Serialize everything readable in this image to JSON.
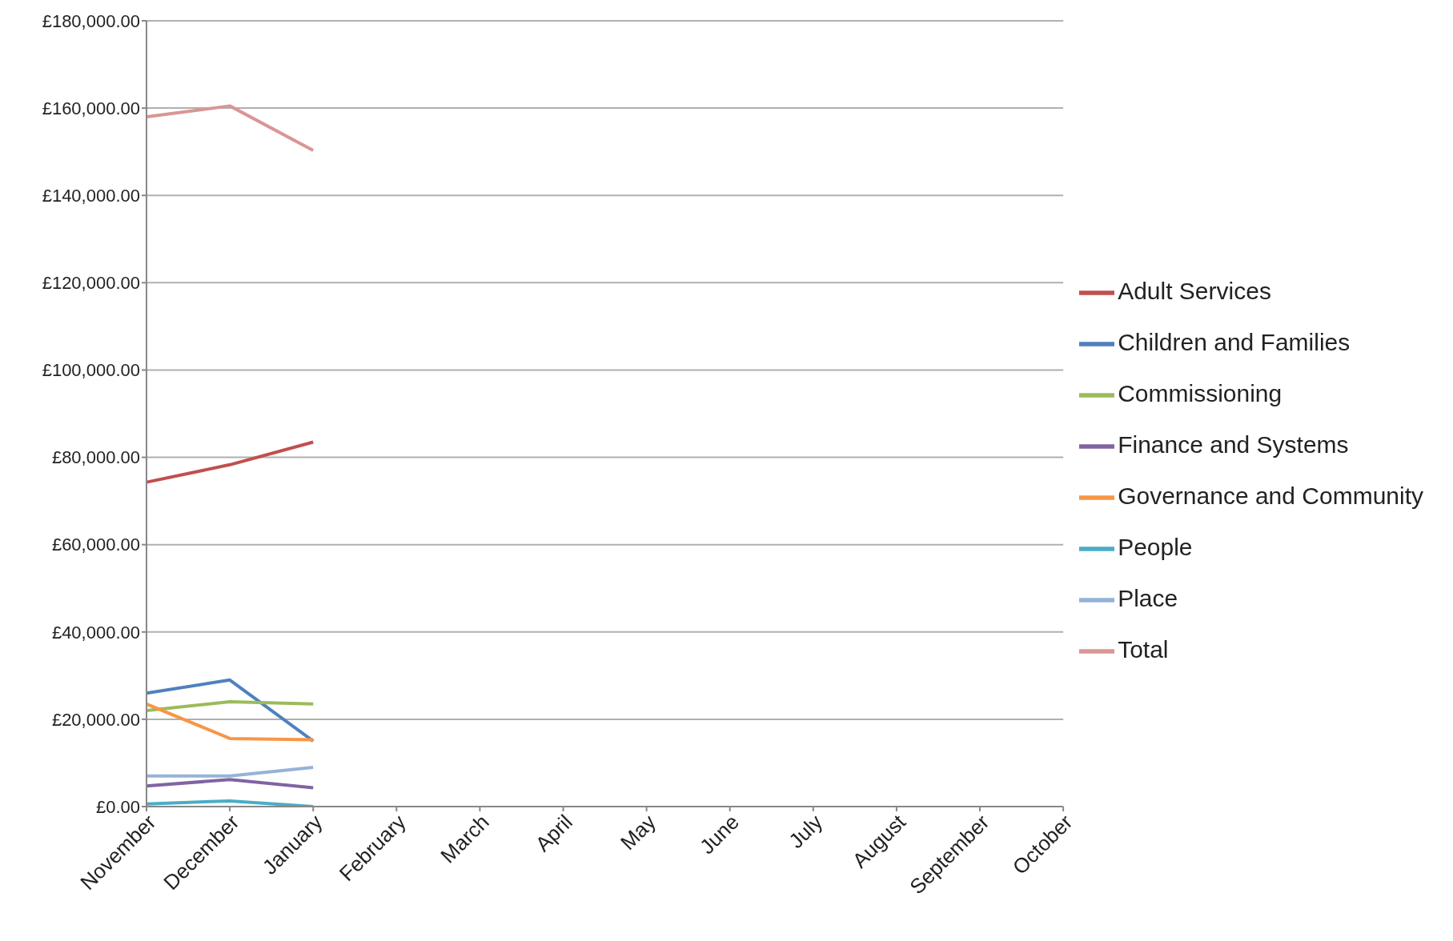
{
  "chart_data": {
    "type": "line",
    "categories": [
      "November",
      "December",
      "January",
      "February",
      "March",
      "April",
      "May",
      "June",
      "July",
      "August",
      "September",
      "October"
    ],
    "series": [
      {
        "name": "Children and Families",
        "color": "#4f81bd",
        "values": [
          26000,
          29000,
          15000,
          null,
          null,
          null,
          null,
          null,
          null,
          null,
          null,
          null
        ]
      },
      {
        "name": "Adult Services",
        "color": "#c0504d",
        "values": [
          74300,
          78300,
          83500,
          null,
          null,
          null,
          null,
          null,
          null,
          null,
          null,
          null
        ]
      },
      {
        "name": "Commissioning",
        "color": "#9bbb59",
        "values": [
          22000,
          24000,
          23500,
          null,
          null,
          null,
          null,
          null,
          null,
          null,
          null,
          null
        ]
      },
      {
        "name": "Finance and Systems",
        "color": "#8064a2",
        "values": [
          4700,
          6200,
          4300,
          null,
          null,
          null,
          null,
          null,
          null,
          null,
          null,
          null
        ]
      },
      {
        "name": "People",
        "color": "#4bacc6",
        "values": [
          600,
          1300,
          0,
          null,
          null,
          null,
          null,
          null,
          null,
          null,
          null,
          null
        ]
      },
      {
        "name": "Governance and Community",
        "color": "#f79646",
        "values": [
          23500,
          15600,
          15300,
          null,
          null,
          null,
          null,
          null,
          null,
          null,
          null,
          null
        ]
      },
      {
        "name": "Place",
        "color": "#95b3d7",
        "values": [
          7000,
          7000,
          9000,
          null,
          null,
          null,
          null,
          null,
          null,
          null,
          null,
          null
        ]
      },
      {
        "name": "Total",
        "color": "#d99694",
        "values": [
          158000,
          160500,
          150300,
          null,
          null,
          null,
          null,
          null,
          null,
          null,
          null,
          null
        ]
      }
    ],
    "ylim": [
      0,
      180000
    ],
    "yticks": [
      {
        "value": 0,
        "label": "£0.00"
      },
      {
        "value": 20000,
        "label": "£20,000.00"
      },
      {
        "value": 40000,
        "label": "£40,000.00"
      },
      {
        "value": 60000,
        "label": "£60,000.00"
      },
      {
        "value": 80000,
        "label": "£80,000.00"
      },
      {
        "value": 100000,
        "label": "£100,000.00"
      },
      {
        "value": 120000,
        "label": "£120,000.00"
      },
      {
        "value": 140000,
        "label": "£140,000.00"
      },
      {
        "value": 160000,
        "label": "£160,000.00"
      },
      {
        "value": 180000,
        "label": "£180,000.00"
      }
    ],
    "grid": "y",
    "legend": "right",
    "marker": "none",
    "line_style": "solid"
  }
}
